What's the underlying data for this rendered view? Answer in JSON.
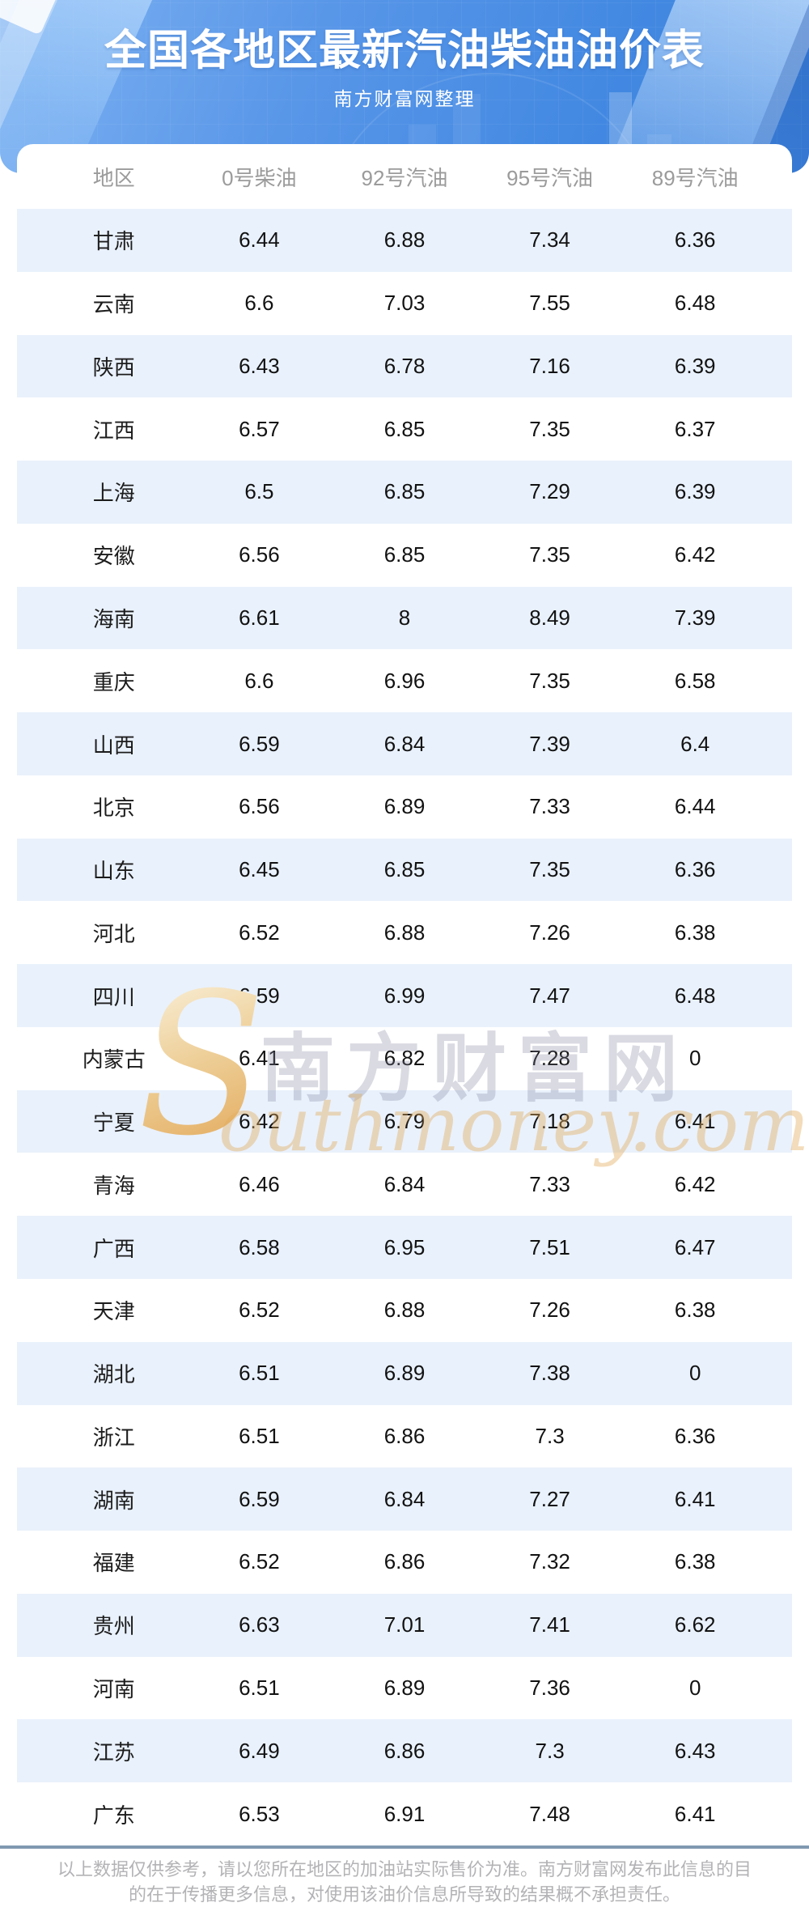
{
  "header": {
    "title": "全国各地区最新汽油柴油油价表",
    "subtitle": "南方财富网整理"
  },
  "chart_data": {
    "type": "table",
    "title": "全国各地区最新汽油柴油油价表",
    "subtitle": "南方财富网整理",
    "columns": [
      "地区",
      "0号柴油",
      "92号汽油",
      "95号汽油",
      "89号汽油"
    ],
    "rows": [
      [
        "甘肃",
        6.44,
        6.88,
        7.34,
        6.36
      ],
      [
        "云南",
        6.6,
        7.03,
        7.55,
        6.48
      ],
      [
        "陕西",
        6.43,
        6.78,
        7.16,
        6.39
      ],
      [
        "江西",
        6.57,
        6.85,
        7.35,
        6.37
      ],
      [
        "上海",
        6.5,
        6.85,
        7.29,
        6.39
      ],
      [
        "安徽",
        6.56,
        6.85,
        7.35,
        6.42
      ],
      [
        "海南",
        6.61,
        8,
        8.49,
        7.39
      ],
      [
        "重庆",
        6.6,
        6.96,
        7.35,
        6.58
      ],
      [
        "山西",
        6.59,
        6.84,
        7.39,
        6.4
      ],
      [
        "北京",
        6.56,
        6.89,
        7.33,
        6.44
      ],
      [
        "山东",
        6.45,
        6.85,
        7.35,
        6.36
      ],
      [
        "河北",
        6.52,
        6.88,
        7.26,
        6.38
      ],
      [
        "四川",
        6.59,
        6.99,
        7.47,
        6.48
      ],
      [
        "内蒙古",
        6.41,
        6.82,
        7.28,
        0
      ],
      [
        "宁夏",
        6.42,
        6.79,
        7.18,
        6.41
      ],
      [
        "青海",
        6.46,
        6.84,
        7.33,
        6.42
      ],
      [
        "广西",
        6.58,
        6.95,
        7.51,
        6.47
      ],
      [
        "天津",
        6.52,
        6.88,
        7.26,
        6.38
      ],
      [
        "湖北",
        6.51,
        6.89,
        7.38,
        0
      ],
      [
        "浙江",
        6.51,
        6.86,
        7.3,
        6.36
      ],
      [
        "湖南",
        6.59,
        6.84,
        7.27,
        6.41
      ],
      [
        "福建",
        6.52,
        6.86,
        7.32,
        6.38
      ],
      [
        "贵州",
        6.63,
        7.01,
        7.41,
        6.62
      ],
      [
        "河南",
        6.51,
        6.89,
        7.36,
        0
      ],
      [
        "江苏",
        6.49,
        6.86,
        7.3,
        6.43
      ],
      [
        "广东",
        6.53,
        6.91,
        7.48,
        6.41
      ]
    ]
  },
  "watermark": {
    "s": "S",
    "cn": "南方财富网",
    "en": "outhmoney.com"
  },
  "footer": {
    "line1": "以上数据仅供参考，请以您所在地区的加油站实际售价为准。南方财富网发布此信息的目",
    "line2": "的在于传播更多信息，对使用该油价信息所导致的结果概不承担责任。"
  },
  "colors": {
    "header_blue": "#4e90e5",
    "header_blue_light": "#7fb3f2",
    "header_blue_deep": "#3b82dd",
    "row_alt_blue": "#e9f1fc",
    "column_header_gray": "#9b9b9b",
    "cell_text": "#121212",
    "divider_blue_gray": "#8099b1",
    "footer_gray": "#b3b3b6",
    "watermark_gold": "#e9bd72",
    "watermark_gray": "#8086a0"
  }
}
